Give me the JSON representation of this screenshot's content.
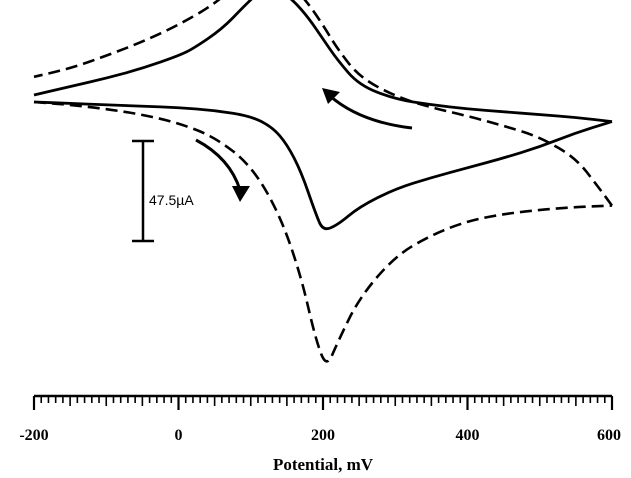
{
  "chart_data": {
    "type": "line",
    "xlabel": "Potential, mV",
    "ylabel": "",
    "title": "",
    "xlim": [
      -200,
      600
    ],
    "x_major_ticks": [
      -200,
      0,
      200,
      400,
      600
    ],
    "x_minor_step": 10,
    "tick_labels": [
      "-200",
      "0",
      "200",
      "400",
      "600"
    ],
    "grid": false,
    "legend": "none",
    "current_scale_bar": {
      "label": "47.5µA",
      "value_uA": 47.5
    },
    "series": [
      {
        "style": "solid",
        "color": "#000000",
        "forward": {
          "x": [
            -200,
            -150,
            -100,
            -50,
            0,
            50,
            100,
            130,
            150,
            170,
            190,
            200,
            220,
            250,
            300,
            350,
            400,
            450,
            500,
            550,
            600
          ],
          "y": [
            0,
            -1,
            -2,
            -3,
            -4,
            -6,
            -10,
            -18,
            -30,
            -50,
            -80,
            -92,
            -88,
            -75,
            -62,
            -54,
            -47,
            -40,
            -32,
            -22,
            -14
          ]
        },
        "reverse": {
          "x": [
            600,
            550,
            500,
            450,
            400,
            350,
            300,
            250,
            220,
            200,
            180,
            160,
            140,
            125,
            110,
            90,
            60,
            20,
            0,
            -50,
            -100,
            -150,
            -200
          ],
          "y": [
            -14,
            -11,
            -9,
            -7,
            -5,
            -2,
            2,
            12,
            30,
            45,
            60,
            72,
            80,
            82,
            78,
            68,
            52,
            38,
            33,
            24,
            17,
            11,
            5
          ]
        }
      },
      {
        "style": "dashed",
        "color": "#000000",
        "forward": {
          "x": [
            -200,
            -150,
            -100,
            -50,
            0,
            50,
            100,
            140,
            170,
            190,
            205,
            220,
            250,
            300,
            350,
            400,
            450,
            500,
            550,
            600
          ],
          "y": [
            0,
            -2,
            -5,
            -9,
            -15,
            -25,
            -45,
            -80,
            -125,
            -170,
            -190,
            -172,
            -140,
            -110,
            -95,
            -85,
            -80,
            -77,
            -75,
            -74
          ]
        },
        "reverse": {
          "x": [
            600,
            580,
            550,
            500,
            450,
            400,
            350,
            300,
            250,
            220,
            200,
            180,
            160,
            140,
            120,
            110,
            100,
            80,
            50,
            0,
            -50,
            -100,
            -150,
            -200
          ],
          "y": [
            -74,
            -60,
            -40,
            -25,
            -17,
            -10,
            -4,
            4,
            18,
            38,
            55,
            70,
            82,
            89,
            93,
            94,
            92,
            84,
            70,
            55,
            43,
            33,
            24,
            18
          ]
        }
      }
    ]
  }
}
